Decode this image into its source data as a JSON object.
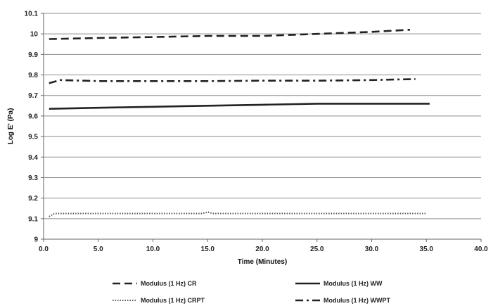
{
  "chart_data": {
    "type": "line",
    "title": "",
    "xlabel": "Time (Minutes)",
    "ylabel": "Log E' (Pa)",
    "xlim": [
      0,
      40
    ],
    "ylim": [
      9,
      10.1
    ],
    "x_ticks": [
      0,
      5,
      10,
      15,
      20,
      25,
      30,
      35,
      40
    ],
    "x_tick_labels": [
      "0.0",
      "5.0",
      "10.0",
      "15.0",
      "20.0",
      "25.0",
      "30.0",
      "35.0",
      "40.0"
    ],
    "y_ticks": [
      9,
      9.1,
      9.2,
      9.3,
      9.4,
      9.5,
      9.6,
      9.7,
      9.8,
      9.9,
      10,
      10.1
    ],
    "y_tick_labels": [
      "9",
      "9.1",
      "9.2",
      "9.3",
      "9.4",
      "9.5",
      "9.6",
      "9.7",
      "9.8",
      "9.9",
      "10",
      "10.1"
    ],
    "grid": "horizontal",
    "legend_position": "bottom",
    "series": [
      {
        "name": "Modulus (1 Hz) CR",
        "dash": "dashed",
        "color": "#222222",
        "points": [
          [
            0.5,
            9.975
          ],
          [
            5,
            9.98
          ],
          [
            10,
            9.985
          ],
          [
            15,
            9.99
          ],
          [
            20,
            9.99
          ],
          [
            25,
            10.0
          ],
          [
            30,
            10.01
          ],
          [
            33.5,
            10.02
          ]
        ]
      },
      {
        "name": "Modulus (1 Hz) WW",
        "dash": "solid",
        "color": "#222222",
        "points": [
          [
            0.5,
            9.635
          ],
          [
            5,
            9.64
          ],
          [
            10,
            9.645
          ],
          [
            15,
            9.65
          ],
          [
            20,
            9.655
          ],
          [
            25,
            9.66
          ],
          [
            30,
            9.66
          ],
          [
            35.3,
            9.66
          ]
        ]
      },
      {
        "name": "Modulus (1 Hz) CRPT",
        "dash": "dotted",
        "color": "#555555",
        "points": [
          [
            0.5,
            9.11
          ],
          [
            1,
            9.125
          ],
          [
            5,
            9.125
          ],
          [
            10,
            9.125
          ],
          [
            14.5,
            9.125
          ],
          [
            15,
            9.132
          ],
          [
            15.5,
            9.125
          ],
          [
            20,
            9.125
          ],
          [
            25,
            9.125
          ],
          [
            30,
            9.125
          ],
          [
            35,
            9.125
          ]
        ]
      },
      {
        "name": "Modulus (1 Hz) WWPT",
        "dash": "dashdot",
        "color": "#222222",
        "points": [
          [
            0.5,
            9.76
          ],
          [
            1.5,
            9.775
          ],
          [
            5,
            9.77
          ],
          [
            10,
            9.77
          ],
          [
            15,
            9.77
          ],
          [
            20,
            9.772
          ],
          [
            25,
            9.772
          ],
          [
            30,
            9.775
          ],
          [
            34,
            9.78
          ]
        ]
      }
    ]
  }
}
